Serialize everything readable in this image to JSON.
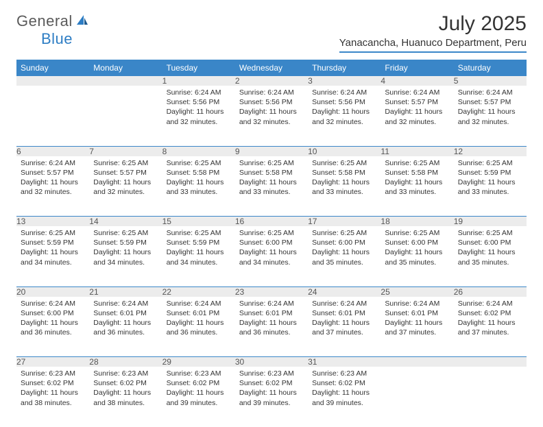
{
  "brand": {
    "text1": "General",
    "text2": "Blue"
  },
  "title": "July 2025",
  "location": "Yanacancha, Huanuco Department, Peru",
  "colors": {
    "header_bg": "#3a86c8",
    "header_text": "#ffffff",
    "daynum_bg": "#ececec",
    "daynum_text": "#555555",
    "divider": "#3a86c8",
    "body_text": "#333333",
    "logo_gray": "#5a5a5a",
    "logo_blue": "#2d7dc4"
  },
  "dayHeaders": [
    "Sunday",
    "Monday",
    "Tuesday",
    "Wednesday",
    "Thursday",
    "Friday",
    "Saturday"
  ],
  "weeks": [
    [
      null,
      null,
      {
        "n": "1",
        "sr": "6:24 AM",
        "ss": "5:56 PM",
        "dl": "11 hours and 32 minutes."
      },
      {
        "n": "2",
        "sr": "6:24 AM",
        "ss": "5:56 PM",
        "dl": "11 hours and 32 minutes."
      },
      {
        "n": "3",
        "sr": "6:24 AM",
        "ss": "5:56 PM",
        "dl": "11 hours and 32 minutes."
      },
      {
        "n": "4",
        "sr": "6:24 AM",
        "ss": "5:57 PM",
        "dl": "11 hours and 32 minutes."
      },
      {
        "n": "5",
        "sr": "6:24 AM",
        "ss": "5:57 PM",
        "dl": "11 hours and 32 minutes."
      }
    ],
    [
      {
        "n": "6",
        "sr": "6:24 AM",
        "ss": "5:57 PM",
        "dl": "11 hours and 32 minutes."
      },
      {
        "n": "7",
        "sr": "6:25 AM",
        "ss": "5:57 PM",
        "dl": "11 hours and 32 minutes."
      },
      {
        "n": "8",
        "sr": "6:25 AM",
        "ss": "5:58 PM",
        "dl": "11 hours and 33 minutes."
      },
      {
        "n": "9",
        "sr": "6:25 AM",
        "ss": "5:58 PM",
        "dl": "11 hours and 33 minutes."
      },
      {
        "n": "10",
        "sr": "6:25 AM",
        "ss": "5:58 PM",
        "dl": "11 hours and 33 minutes."
      },
      {
        "n": "11",
        "sr": "6:25 AM",
        "ss": "5:58 PM",
        "dl": "11 hours and 33 minutes."
      },
      {
        "n": "12",
        "sr": "6:25 AM",
        "ss": "5:59 PM",
        "dl": "11 hours and 33 minutes."
      }
    ],
    [
      {
        "n": "13",
        "sr": "6:25 AM",
        "ss": "5:59 PM",
        "dl": "11 hours and 34 minutes."
      },
      {
        "n": "14",
        "sr": "6:25 AM",
        "ss": "5:59 PM",
        "dl": "11 hours and 34 minutes."
      },
      {
        "n": "15",
        "sr": "6:25 AM",
        "ss": "5:59 PM",
        "dl": "11 hours and 34 minutes."
      },
      {
        "n": "16",
        "sr": "6:25 AM",
        "ss": "6:00 PM",
        "dl": "11 hours and 34 minutes."
      },
      {
        "n": "17",
        "sr": "6:25 AM",
        "ss": "6:00 PM",
        "dl": "11 hours and 35 minutes."
      },
      {
        "n": "18",
        "sr": "6:25 AM",
        "ss": "6:00 PM",
        "dl": "11 hours and 35 minutes."
      },
      {
        "n": "19",
        "sr": "6:25 AM",
        "ss": "6:00 PM",
        "dl": "11 hours and 35 minutes."
      }
    ],
    [
      {
        "n": "20",
        "sr": "6:24 AM",
        "ss": "6:00 PM",
        "dl": "11 hours and 36 minutes."
      },
      {
        "n": "21",
        "sr": "6:24 AM",
        "ss": "6:01 PM",
        "dl": "11 hours and 36 minutes."
      },
      {
        "n": "22",
        "sr": "6:24 AM",
        "ss": "6:01 PM",
        "dl": "11 hours and 36 minutes."
      },
      {
        "n": "23",
        "sr": "6:24 AM",
        "ss": "6:01 PM",
        "dl": "11 hours and 36 minutes."
      },
      {
        "n": "24",
        "sr": "6:24 AM",
        "ss": "6:01 PM",
        "dl": "11 hours and 37 minutes."
      },
      {
        "n": "25",
        "sr": "6:24 AM",
        "ss": "6:01 PM",
        "dl": "11 hours and 37 minutes."
      },
      {
        "n": "26",
        "sr": "6:24 AM",
        "ss": "6:02 PM",
        "dl": "11 hours and 37 minutes."
      }
    ],
    [
      {
        "n": "27",
        "sr": "6:23 AM",
        "ss": "6:02 PM",
        "dl": "11 hours and 38 minutes."
      },
      {
        "n": "28",
        "sr": "6:23 AM",
        "ss": "6:02 PM",
        "dl": "11 hours and 38 minutes."
      },
      {
        "n": "29",
        "sr": "6:23 AM",
        "ss": "6:02 PM",
        "dl": "11 hours and 39 minutes."
      },
      {
        "n": "30",
        "sr": "6:23 AM",
        "ss": "6:02 PM",
        "dl": "11 hours and 39 minutes."
      },
      {
        "n": "31",
        "sr": "6:23 AM",
        "ss": "6:02 PM",
        "dl": "11 hours and 39 minutes."
      },
      null,
      null
    ]
  ],
  "labels": {
    "sunrise": "Sunrise:",
    "sunset": "Sunset:",
    "daylight": "Daylight:"
  }
}
